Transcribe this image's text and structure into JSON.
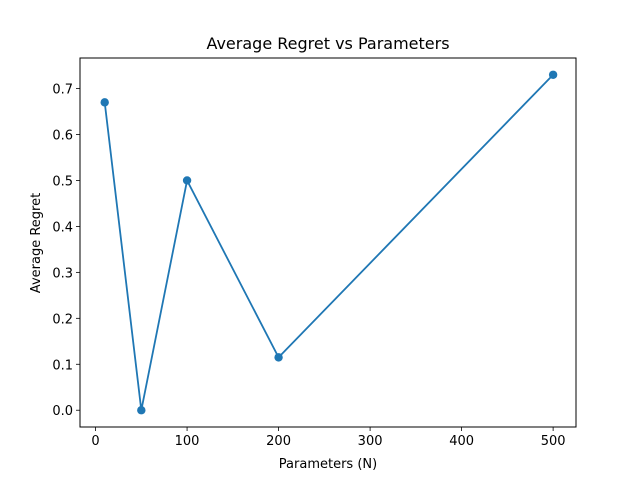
{
  "chart_data": {
    "type": "line",
    "title": "Average Regret vs Parameters",
    "xlabel": "Parameters (N)",
    "ylabel": "Average Regret",
    "x": [
      10,
      50,
      100,
      200,
      500
    ],
    "series": [
      {
        "values": [
          0.67,
          0.0,
          0.5,
          0.115,
          0.73
        ],
        "color": "#1f77b4",
        "marker": "circle"
      }
    ],
    "xlim": [
      -17,
      525
    ],
    "ylim": [
      -0.0365,
      0.7665
    ],
    "xticks": [
      0,
      100,
      200,
      300,
      400,
      500
    ],
    "yticks": [
      0.0,
      0.1,
      0.2,
      0.3,
      0.4,
      0.5,
      0.6,
      0.7
    ],
    "grid": false,
    "legend": false
  }
}
